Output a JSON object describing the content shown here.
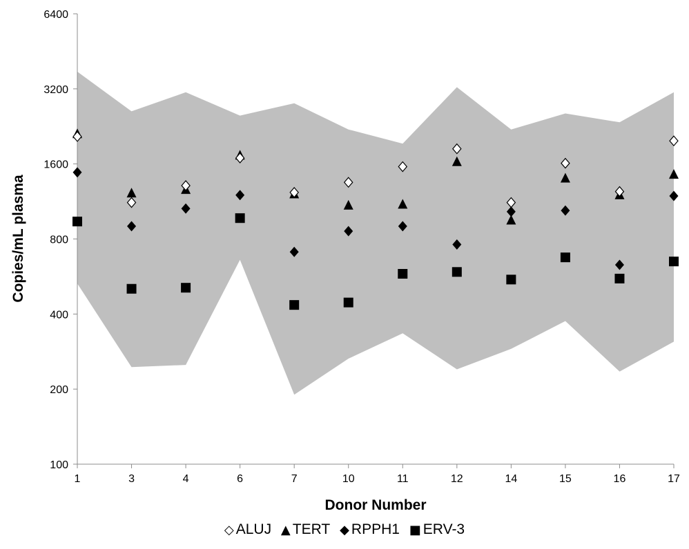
{
  "chart_data": {
    "type": "scatter",
    "xlabel": "Donor Number",
    "ylabel": "Copies/mL plasma",
    "y_scale": "log2",
    "ylim": [
      100,
      6400
    ],
    "yticks": [
      "100",
      "200",
      "400",
      "800",
      "1600",
      "3200",
      "6400"
    ],
    "categories": [
      "1",
      "3",
      "4",
      "6",
      "7",
      "10",
      "11",
      "12",
      "14",
      "15",
      "16",
      "17"
    ],
    "band": {
      "color": "#bfbfbf",
      "upper": [
        3750,
        2600,
        3100,
        2500,
        2800,
        2200,
        1930,
        3250,
        2200,
        2550,
        2350,
        3100
      ],
      "lower": [
        530,
        245,
        250,
        660,
        190,
        265,
        335,
        240,
        290,
        375,
        235,
        310
      ]
    },
    "series": [
      {
        "name": "ALUJ",
        "marker": "diamond-open",
        "color": "#000000",
        "values": [
          2060,
          1120,
          1310,
          1690,
          1230,
          1350,
          1560,
          1840,
          1120,
          1610,
          1240,
          1980
        ]
      },
      {
        "name": "TERT",
        "marker": "triangle",
        "color": "#000000",
        "values": [
          2110,
          1220,
          1260,
          1730,
          1210,
          1090,
          1100,
          1630,
          950,
          1400,
          1200,
          1450
        ]
      },
      {
        "name": "RPPH1",
        "marker": "diamond",
        "color": "#000000",
        "values": [
          1480,
          900,
          1060,
          1200,
          710,
          860,
          900,
          760,
          1030,
          1040,
          630,
          1190
        ]
      },
      {
        "name": "ERV-3",
        "marker": "square",
        "color": "#000000",
        "values": [
          940,
          505,
          510,
          970,
          435,
          445,
          580,
          590,
          550,
          675,
          555,
          650
        ]
      }
    ]
  },
  "legend": [
    {
      "symbol": "◇",
      "label": "ALUJ"
    },
    {
      "symbol": "▲",
      "label": "TERT"
    },
    {
      "symbol": "◆",
      "label": "RPPH1"
    },
    {
      "symbol": "■",
      "label": "ERV-3"
    }
  ]
}
